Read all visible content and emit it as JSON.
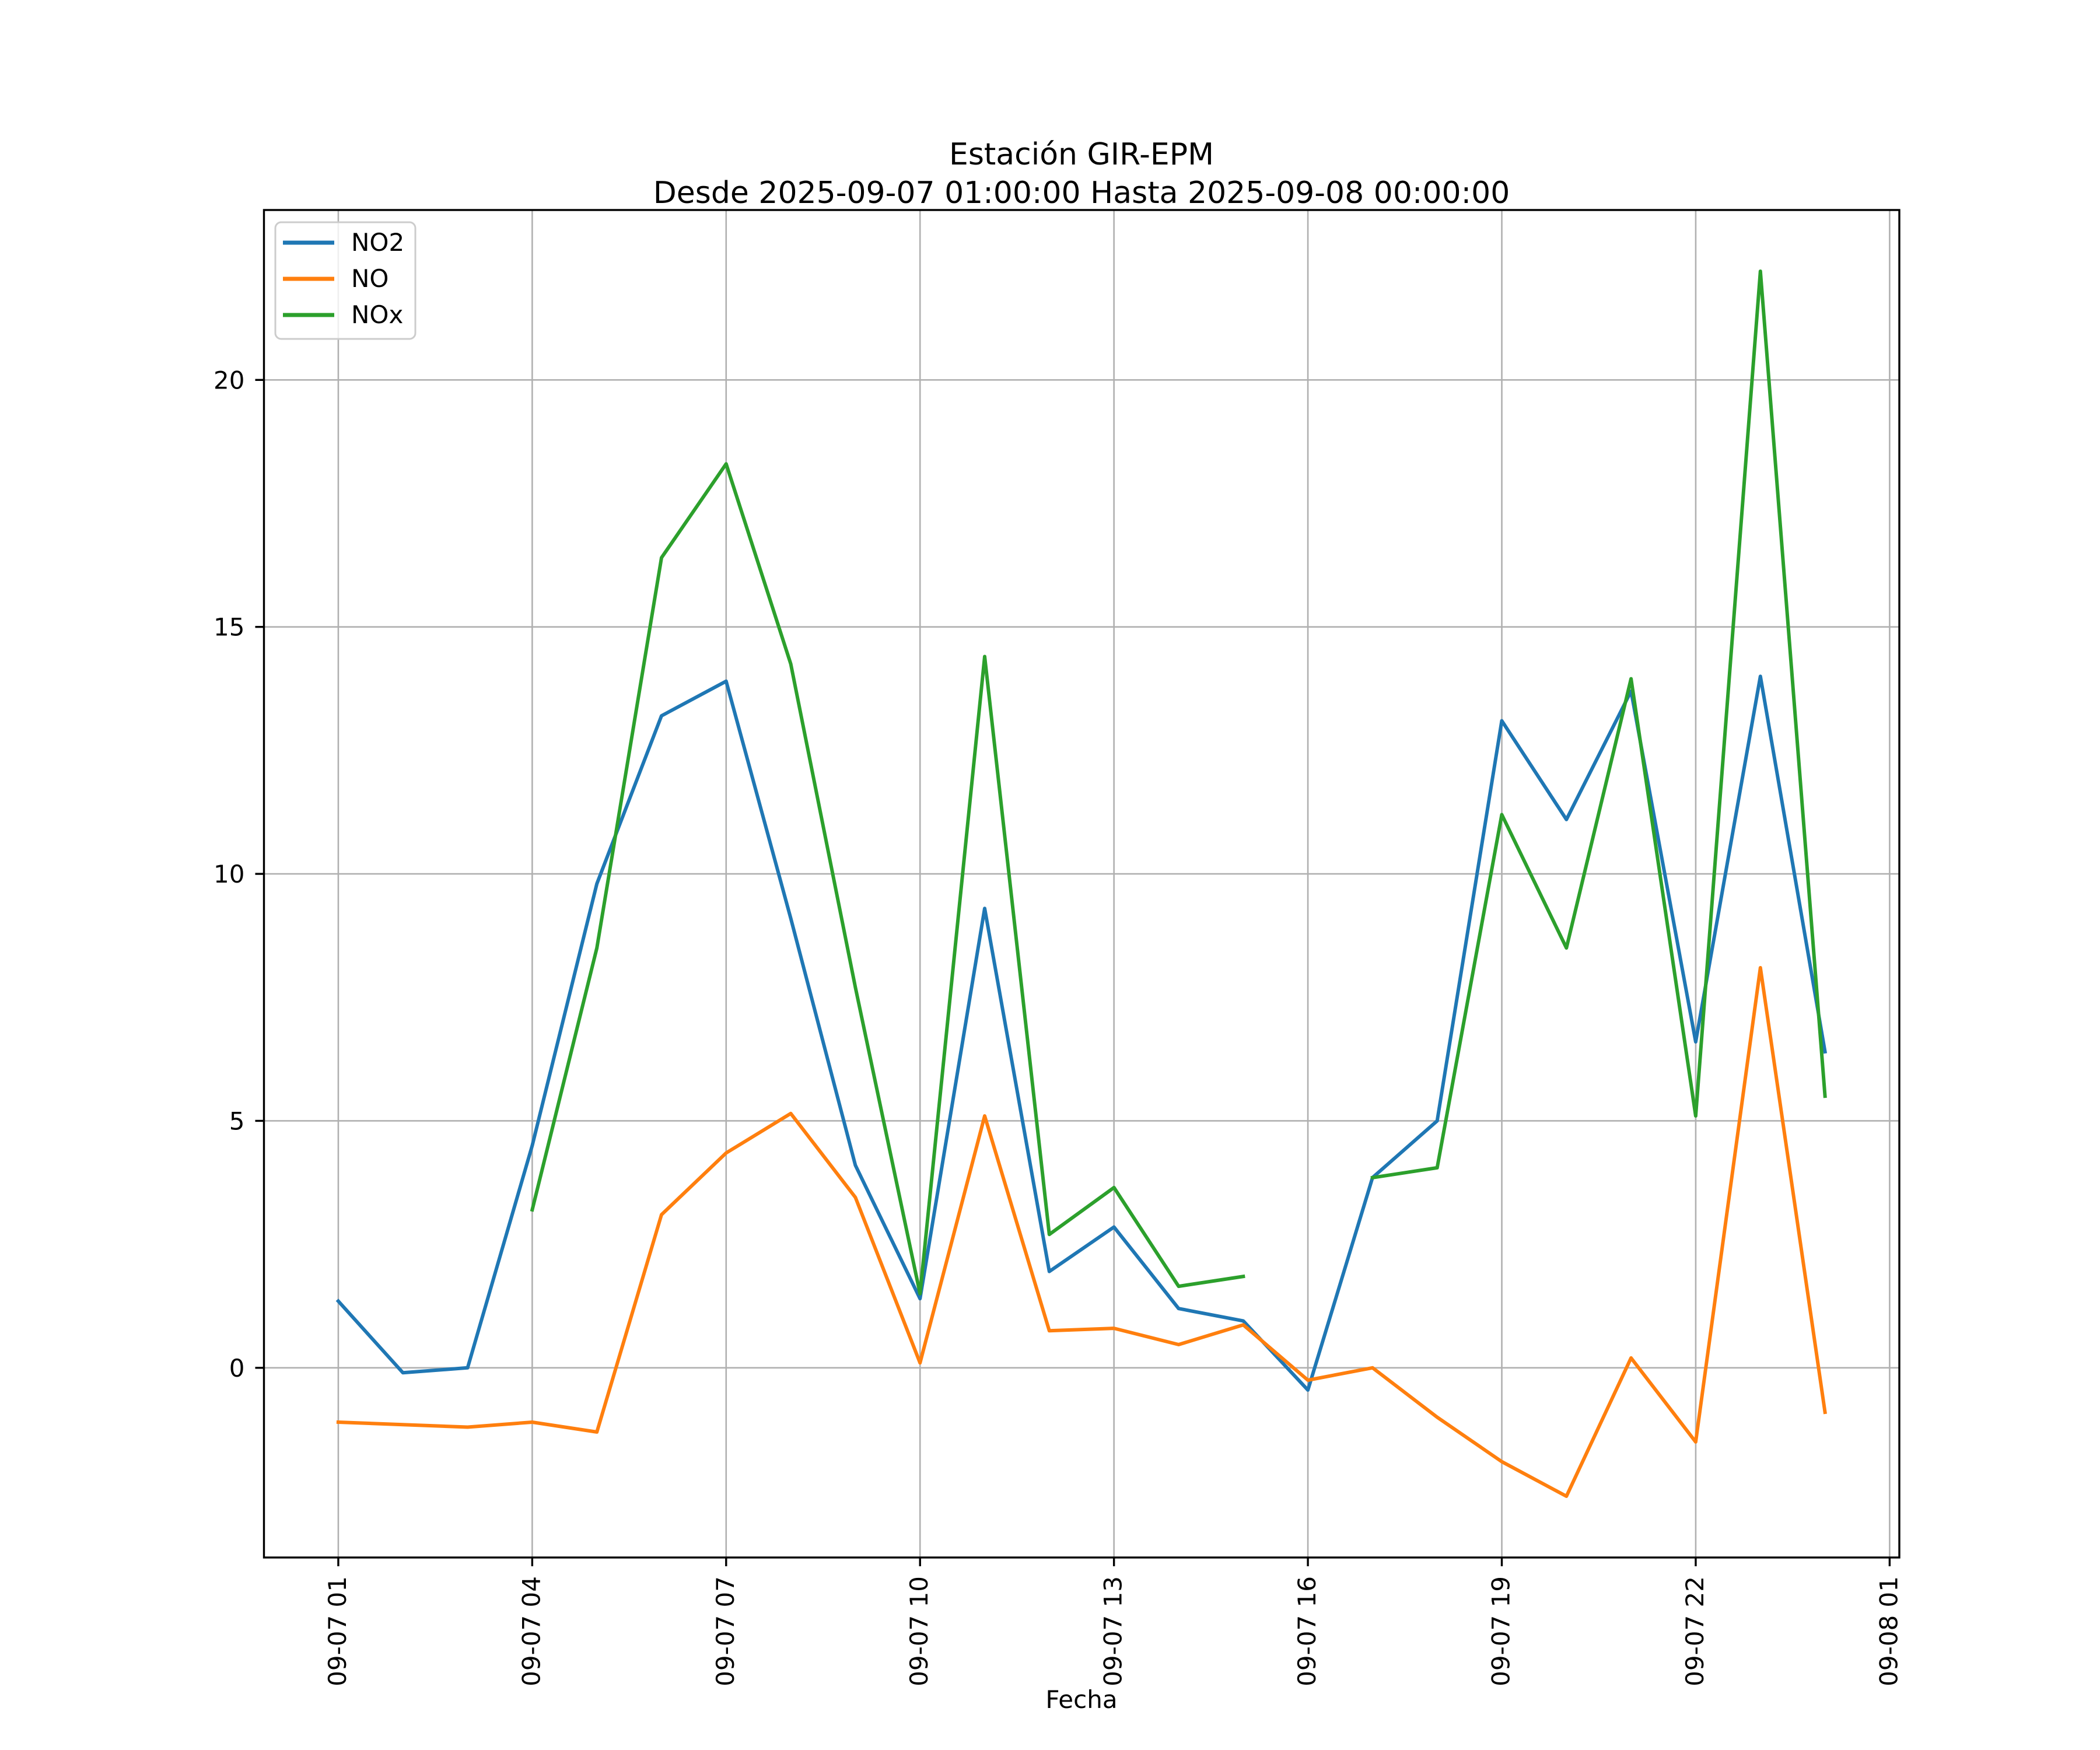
{
  "title": {
    "line1": "Estación GIR-EPM",
    "line2": "Desde 2025-09-07 01:00:00 Hasta 2025-09-08 00:00:00"
  },
  "chart_data": {
    "type": "line",
    "title": "Estación GIR-EPM\nDesde 2025-09-07 01:00:00 Hasta 2025-09-08 00:00:00",
    "xlabel": "Fecha",
    "ylabel": "",
    "x_hours": [
      1,
      2,
      3,
      4,
      5,
      6,
      7,
      8,
      9,
      10,
      11,
      12,
      13,
      14,
      15,
      16,
      17,
      18,
      19,
      20,
      21,
      22,
      23,
      24
    ],
    "series": [
      {
        "name": "NO2",
        "color": "#1f77b4",
        "values": [
          1.35,
          -0.1,
          0.0,
          4.5,
          9.8,
          13.2,
          13.9,
          9.1,
          4.1,
          1.4,
          9.3,
          1.95,
          2.85,
          1.2,
          0.95,
          -0.45,
          3.85,
          5.0,
          13.1,
          11.1,
          13.7,
          6.6,
          14.0,
          6.4
        ]
      },
      {
        "name": "NO",
        "color": "#ff7f0e",
        "values": [
          -1.1,
          -1.15,
          -1.2,
          -1.1,
          -1.3,
          3.1,
          4.35,
          5.15,
          3.45,
          0.1,
          5.1,
          0.75,
          0.8,
          0.47,
          0.87,
          -0.25,
          0.0,
          -1.0,
          -1.9,
          -2.6,
          0.2,
          -1.5,
          8.1,
          -0.9
        ]
      },
      {
        "name": "NOx",
        "color": "#2ca02c",
        "values": [
          null,
          null,
          null,
          3.2,
          8.5,
          16.4,
          18.3,
          14.25,
          7.7,
          1.5,
          14.4,
          2.7,
          3.65,
          1.65,
          1.85,
          null,
          3.85,
          4.05,
          11.2,
          8.5,
          13.95,
          5.1,
          22.2,
          5.5
        ]
      }
    ],
    "xticks": [
      1,
      4,
      7,
      10,
      13,
      16,
      19,
      22,
      25
    ],
    "xticklabels": [
      "09-07 01",
      "09-07 04",
      "09-07 07",
      "09-07 10",
      "09-07 13",
      "09-07 16",
      "09-07 19",
      "09-07 22",
      "09-08 01"
    ],
    "yticks": [
      0,
      5,
      10,
      15,
      20
    ],
    "yticklabels": [
      "0",
      "5",
      "10",
      "15",
      "20"
    ],
    "xlim": [
      -0.15,
      25.15
    ],
    "ylim": [
      -3.84,
      23.44
    ],
    "grid": true,
    "legend_position": "upper left"
  }
}
